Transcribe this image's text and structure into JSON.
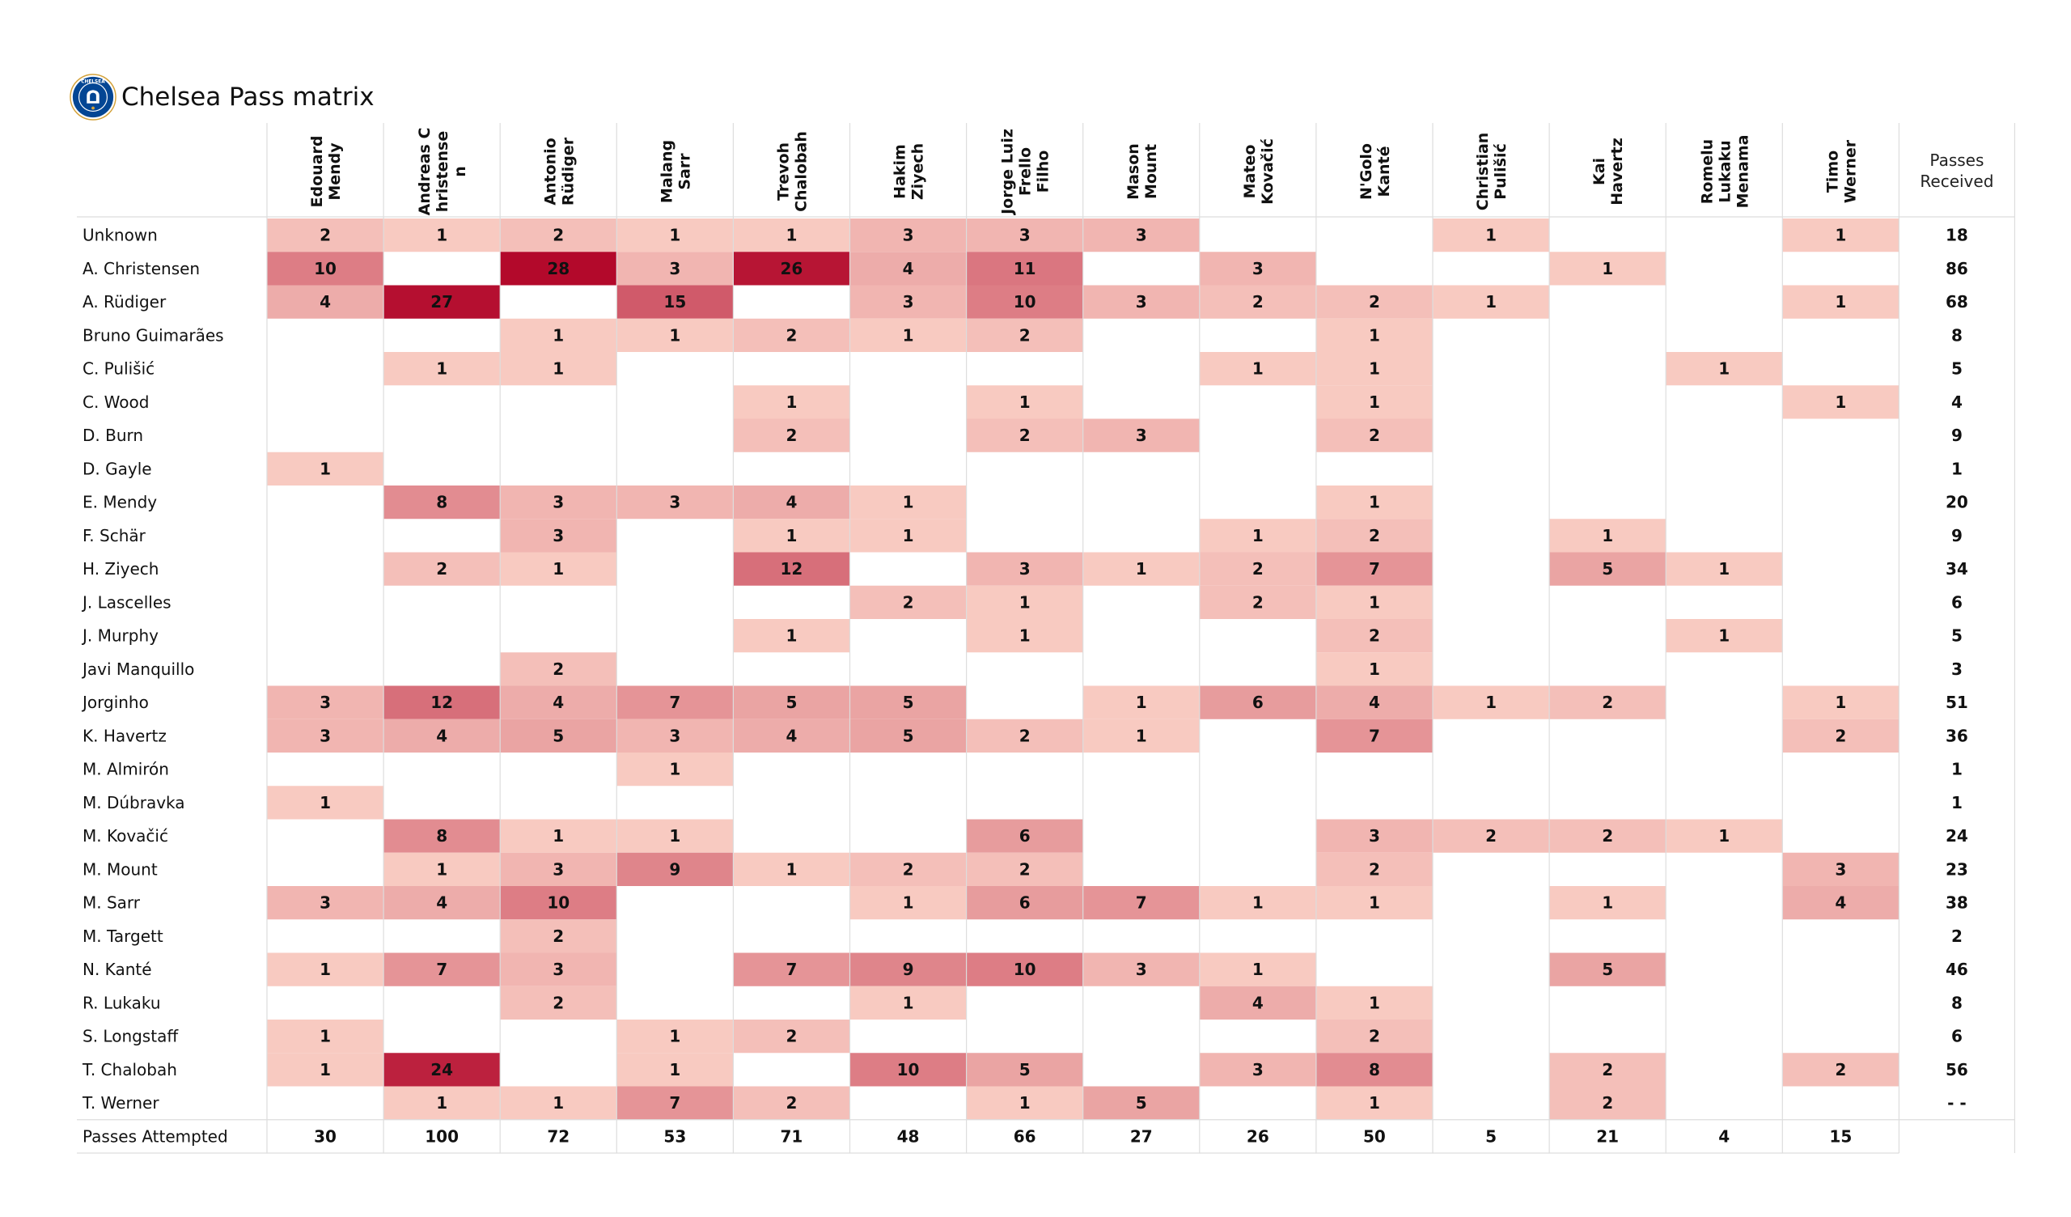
{
  "title": "Chelsea Pass matrix",
  "logo": {
    "icon": "chelsea-crest-icon",
    "text": "CHELSEA",
    "colors": {
      "primary": "#034694",
      "gold": "#d4a23a"
    }
  },
  "colors": {
    "scale_low": "#fdd8cc",
    "scale_high": "#b3092b",
    "grid": "#dddddd"
  },
  "chart_data": {
    "type": "heatmap",
    "title": "Chelsea Pass matrix",
    "columns": [
      [
        "Edouard",
        "Mendy"
      ],
      [
        "Andreas C",
        "hristense",
        "n"
      ],
      [
        "Antonio",
        "Rüdiger"
      ],
      [
        "Malang",
        "Sarr"
      ],
      [
        "Trevoh",
        "Chalobah"
      ],
      [
        "Hakim",
        "Ziyech"
      ],
      [
        "Jorge Luiz",
        "Frello",
        "Filho"
      ],
      [
        "Mason",
        "Mount"
      ],
      [
        "Mateo",
        "Kovačić"
      ],
      [
        "N'Golo",
        "Kanté"
      ],
      [
        "Christian",
        "Pulišić"
      ],
      [
        "Kai",
        "Havertz"
      ],
      [
        "Romelu",
        "Lukaku",
        "Menama"
      ],
      [
        "Timo",
        "Werner"
      ]
    ],
    "received_header": [
      "Passes",
      "Received"
    ],
    "rows": [
      {
        "name": "Unknown",
        "values": [
          2,
          1,
          2,
          1,
          1,
          3,
          3,
          3,
          null,
          null,
          1,
          null,
          null,
          1
        ],
        "received": "18"
      },
      {
        "name": "A. Christensen",
        "values": [
          10,
          null,
          28,
          3,
          26,
          4,
          11,
          null,
          3,
          null,
          null,
          1,
          null,
          null
        ],
        "received": "86"
      },
      {
        "name": "A. Rüdiger",
        "values": [
          4,
          27,
          null,
          15,
          null,
          3,
          10,
          3,
          2,
          2,
          1,
          null,
          null,
          1
        ],
        "received": "68"
      },
      {
        "name": "Bruno Guimarães",
        "values": [
          null,
          null,
          1,
          1,
          2,
          1,
          2,
          null,
          null,
          1,
          null,
          null,
          null,
          null
        ],
        "received": "8"
      },
      {
        "name": "C. Pulišić",
        "values": [
          null,
          1,
          1,
          null,
          null,
          null,
          null,
          null,
          1,
          1,
          null,
          null,
          1,
          null
        ],
        "received": "5"
      },
      {
        "name": "C. Wood",
        "values": [
          null,
          null,
          null,
          null,
          1,
          null,
          1,
          null,
          null,
          1,
          null,
          null,
          null,
          1
        ],
        "received": "4"
      },
      {
        "name": "D. Burn",
        "values": [
          null,
          null,
          null,
          null,
          2,
          null,
          2,
          3,
          null,
          2,
          null,
          null,
          null,
          null
        ],
        "received": "9"
      },
      {
        "name": "D. Gayle",
        "values": [
          1,
          null,
          null,
          null,
          null,
          null,
          null,
          null,
          null,
          null,
          null,
          null,
          null,
          null
        ],
        "received": "1"
      },
      {
        "name": "E. Mendy",
        "values": [
          null,
          8,
          3,
          3,
          4,
          1,
          null,
          null,
          null,
          1,
          null,
          null,
          null,
          null
        ],
        "received": "20"
      },
      {
        "name": "F. Schär",
        "values": [
          null,
          null,
          3,
          null,
          1,
          1,
          null,
          null,
          1,
          2,
          null,
          1,
          null,
          null
        ],
        "received": "9"
      },
      {
        "name": "H. Ziyech",
        "values": [
          null,
          2,
          1,
          null,
          12,
          null,
          3,
          1,
          2,
          7,
          null,
          5,
          1,
          null
        ],
        "received": "34"
      },
      {
        "name": "J. Lascelles",
        "values": [
          null,
          null,
          null,
          null,
          null,
          2,
          1,
          null,
          2,
          1,
          null,
          null,
          null,
          null
        ],
        "received": "6"
      },
      {
        "name": "J. Murphy",
        "values": [
          null,
          null,
          null,
          null,
          1,
          null,
          1,
          null,
          null,
          2,
          null,
          null,
          1,
          null
        ],
        "received": "5"
      },
      {
        "name": "Javi Manquillo",
        "values": [
          null,
          null,
          2,
          null,
          null,
          null,
          null,
          null,
          null,
          1,
          null,
          null,
          null,
          null
        ],
        "received": "3"
      },
      {
        "name": "Jorginho",
        "values": [
          3,
          12,
          4,
          7,
          5,
          5,
          null,
          1,
          6,
          4,
          1,
          2,
          null,
          1
        ],
        "received": "51"
      },
      {
        "name": "K. Havertz",
        "values": [
          3,
          4,
          5,
          3,
          4,
          5,
          2,
          1,
          null,
          7,
          null,
          null,
          null,
          2
        ],
        "received": "36"
      },
      {
        "name": "M. Almirón",
        "values": [
          null,
          null,
          null,
          1,
          null,
          null,
          null,
          null,
          null,
          null,
          null,
          null,
          null,
          null
        ],
        "received": "1"
      },
      {
        "name": "M. Dúbravka",
        "values": [
          1,
          null,
          null,
          null,
          null,
          null,
          null,
          null,
          null,
          null,
          null,
          null,
          null,
          null
        ],
        "received": "1"
      },
      {
        "name": "M. Kovačić",
        "values": [
          null,
          8,
          1,
          1,
          null,
          null,
          6,
          null,
          null,
          3,
          2,
          2,
          1,
          null
        ],
        "received": "24"
      },
      {
        "name": "M. Mount",
        "values": [
          null,
          1,
          3,
          9,
          1,
          2,
          2,
          null,
          null,
          2,
          null,
          null,
          null,
          3
        ],
        "received": "23"
      },
      {
        "name": "M. Sarr",
        "values": [
          3,
          4,
          10,
          null,
          null,
          1,
          6,
          7,
          1,
          1,
          null,
          1,
          null,
          4
        ],
        "received": "38"
      },
      {
        "name": "M. Targett",
        "values": [
          null,
          null,
          2,
          null,
          null,
          null,
          null,
          null,
          null,
          null,
          null,
          null,
          null,
          null
        ],
        "received": "2"
      },
      {
        "name": "N. Kanté",
        "values": [
          1,
          7,
          3,
          null,
          7,
          9,
          10,
          3,
          1,
          null,
          null,
          5,
          null,
          null
        ],
        "received": "46"
      },
      {
        "name": "R. Lukaku",
        "values": [
          null,
          null,
          2,
          null,
          null,
          1,
          null,
          null,
          4,
          1,
          null,
          null,
          null,
          null
        ],
        "received": "8"
      },
      {
        "name": "S. Longstaff",
        "values": [
          1,
          null,
          null,
          1,
          2,
          null,
          null,
          null,
          null,
          2,
          null,
          null,
          null,
          null
        ],
        "received": "6"
      },
      {
        "name": "T. Chalobah",
        "values": [
          1,
          24,
          null,
          1,
          null,
          10,
          5,
          null,
          3,
          8,
          null,
          2,
          null,
          2
        ],
        "received": "56"
      },
      {
        "name": "T. Werner",
        "values": [
          null,
          1,
          1,
          7,
          2,
          null,
          1,
          5,
          null,
          1,
          null,
          2,
          null,
          null
        ],
        "received": "- -"
      }
    ],
    "attempted_label": "Passes Attempted",
    "attempted": [
      30,
      100,
      72,
      53,
      71,
      48,
      66,
      27,
      26,
      50,
      5,
      21,
      4,
      15
    ],
    "value_range": [
      0,
      28
    ]
  }
}
